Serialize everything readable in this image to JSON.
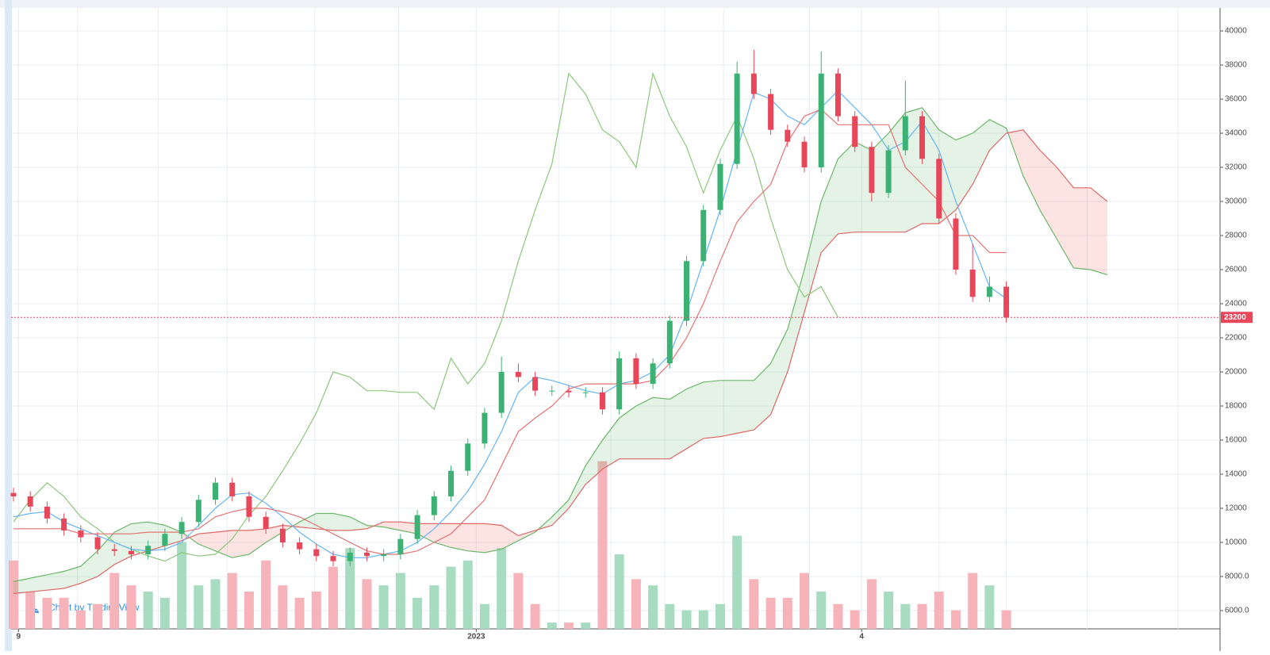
{
  "chart_data": {
    "type": "candlestick",
    "watermark": "Chart by TradingView",
    "ylim": [
      4930,
      41350
    ],
    "yticks": [
      {
        "value": 6000,
        "label": "6000.0"
      },
      {
        "value": 8000,
        "label": "8000.0"
      },
      10000,
      12000,
      14000,
      16000,
      18000,
      20000,
      22000,
      24000,
      26000,
      28000,
      30000,
      32000,
      34000,
      36000,
      38000,
      40000
    ],
    "xlim": [
      -0.14,
      71.7
    ],
    "xticks": [
      {
        "value": 0.3,
        "label": "9"
      },
      {
        "value": 27.5,
        "label": "2023"
      },
      {
        "value": 50.4,
        "label": "4"
      }
    ],
    "xgrid": [
      3.8,
      8.6,
      12.7,
      17.9,
      22.9,
      32.4,
      35.5,
      38.7,
      42.2,
      47.3,
      55,
      59,
      63.8,
      69.2
    ],
    "grid": true,
    "last_price": 23200,
    "up_color": "#3bb273",
    "down_color": "#e8475a",
    "volume_up_color": "#a8dcc0",
    "volume_down_color": "#f6b3ba",
    "displacement": 10,
    "y2lim": [
      0,
      100
    ],
    "open": [
      12900,
      12700,
      12100,
      11400,
      10700,
      10300,
      9600,
      9500,
      9300,
      9800,
      10500,
      11200,
      12500,
      13500,
      12700,
      11500,
      10800,
      10000,
      9600,
      9200,
      8900,
      9400,
      9200,
      9300,
      10200,
      11600,
      12700,
      14200,
      15800,
      17600,
      20000,
      19700,
      18900,
      18900,
      18800,
      18800,
      17800,
      20800,
      19300,
      20500,
      23000,
      26500,
      29500,
      32200,
      37500,
      36300,
      34200,
      33500,
      32000,
      37500,
      35000,
      33200,
      30500,
      33000,
      35000,
      32500,
      29000,
      26000,
      24400,
      25000
    ],
    "high": [
      13200,
      13000,
      12400,
      11700,
      11000,
      10600,
      9900,
      9800,
      10100,
      10800,
      11500,
      12800,
      13800,
      13800,
      13000,
      11800,
      11100,
      10300,
      9900,
      9500,
      9700,
      9700,
      9600,
      10500,
      11900,
      13000,
      14500,
      16100,
      17900,
      20900,
      20500,
      20000,
      19200,
      19200,
      19100,
      19100,
      21200,
      21100,
      20800,
      23300,
      26800,
      29800,
      32500,
      38200,
      38900,
      36600,
      34500,
      33800,
      38800,
      37800,
      35300,
      33500,
      33300,
      37100,
      35300,
      32800,
      29300,
      27500,
      25600,
      25300
    ],
    "low": [
      12400,
      11800,
      11100,
      10400,
      10000,
      9300,
      9200,
      9000,
      9000,
      9500,
      10200,
      10900,
      12200,
      12400,
      11200,
      10500,
      9700,
      9300,
      8900,
      8600,
      8600,
      8900,
      8900,
      9000,
      9900,
      11300,
      12400,
      13900,
      15500,
      17300,
      19400,
      18600,
      18600,
      18500,
      18500,
      17500,
      17500,
      19000,
      19000,
      20200,
      22700,
      26200,
      29200,
      31900,
      36000,
      33900,
      33200,
      31700,
      31700,
      34700,
      32900,
      30000,
      30200,
      32700,
      32200,
      28700,
      25700,
      24100,
      24100,
      22900
    ],
    "close": [
      12700,
      12100,
      11400,
      10700,
      10300,
      9600,
      9500,
      9300,
      9800,
      10500,
      11200,
      12500,
      13500,
      12700,
      11500,
      10800,
      10000,
      9600,
      9200,
      8900,
      9400,
      9200,
      9300,
      10200,
      11600,
      12700,
      14200,
      15800,
      17600,
      20000,
      19700,
      18900,
      18900,
      18800,
      18800,
      17800,
      20800,
      19300,
      20500,
      23000,
      26500,
      29500,
      32200,
      37500,
      36300,
      34200,
      33500,
      32000,
      37500,
      35000,
      33200,
      30500,
      33000,
      35000,
      32500,
      29000,
      26000,
      24400,
      25000,
      23200
    ],
    "volume": [
      11,
      6,
      5,
      5,
      3,
      4,
      9,
      7,
      6,
      5,
      14,
      7,
      8,
      9,
      6,
      11,
      7,
      5,
      6,
      10,
      13,
      8,
      7,
      9,
      5,
      7,
      10,
      11,
      4,
      13,
      9,
      4,
      1,
      1,
      1,
      27,
      12,
      8,
      7,
      4,
      3,
      3,
      4,
      15,
      8,
      5,
      5,
      9,
      6,
      4,
      3,
      8,
      6,
      4,
      4,
      6,
      3,
      9,
      7,
      3
    ],
    "lines": [
      {
        "color": "#64b5f6",
        "values": [
          11500,
          11700,
          11800,
          11200,
          10800,
          10400,
          10000,
          9600,
          9500,
          9600,
          10000,
          11000,
          12000,
          12800,
          12900,
          12300,
          11500,
          10600,
          9900,
          9300,
          9100,
          9100,
          9300,
          9500,
          10000,
          10800,
          11800,
          13000,
          14600,
          16500,
          18800,
          19700,
          19500,
          19200,
          18900,
          18700,
          19300,
          19500,
          20000,
          21000,
          23500,
          26500,
          29500,
          33000,
          36400,
          36000,
          35000,
          34500,
          35500,
          36500,
          35500,
          34500,
          33000,
          33500,
          34700,
          33000,
          30000,
          27500,
          25000,
          24300
        ]
      },
      {
        "color": "#e57373",
        "values": [
          10800,
          10800,
          10800,
          10800,
          10500,
          10500,
          10500,
          10500,
          10600,
          10600,
          10600,
          10800,
          11500,
          11800,
          12000,
          12000,
          11800,
          11500,
          11000,
          10500,
          10000,
          9500,
          9300,
          9300,
          9500,
          10000,
          10500,
          11500,
          12500,
          14500,
          16500,
          17300,
          18000,
          19000,
          19300,
          19300,
          19300,
          19300,
          19500,
          20500,
          22000,
          24000,
          26500,
          28800,
          30000,
          31000,
          33500,
          35000,
          35400,
          34500,
          34500,
          34500,
          34500,
          32000,
          31000,
          30000,
          28000,
          28000,
          27000,
          27000
        ]
      }
    ],
    "chikou_color": "#8cc77a",
    "span_a": {
      "color": "#6cb86a",
      "up_fill": "rgba(76,175,80,0.15)",
      "values": [
        7700,
        7900,
        8100,
        8300,
        8600,
        9500,
        10600,
        11100,
        11200,
        11000,
        10600,
        9900,
        9500,
        9100,
        9300,
        10000,
        10600,
        11200,
        11700,
        11700,
        11500,
        11000,
        10900,
        10700,
        10500,
        10000,
        9700,
        9500,
        9400,
        9600,
        10100,
        10600,
        11500,
        12500,
        14500,
        16000,
        17300,
        18000,
        18500,
        18400,
        19000,
        19400,
        19500,
        19500,
        19500,
        20500,
        22500,
        26000,
        30000,
        32500,
        33500,
        33000,
        34000,
        35200,
        35500,
        34200,
        33600,
        34000,
        34800,
        34300,
        31500,
        29500,
        27800,
        26100,
        26000,
        25700
      ]
    },
    "span_b": {
      "color": "#e06666",
      "down_fill": "rgba(244,67,54,0.14)",
      "values": [
        7000,
        7100,
        7200,
        7300,
        7600,
        8000,
        8700,
        9200,
        9500,
        9800,
        10100,
        10500,
        10600,
        10700,
        10700,
        10800,
        11000,
        10900,
        10800,
        10700,
        10700,
        10800,
        11200,
        11200,
        11100,
        11100,
        11100,
        11100,
        11100,
        11000,
        10400,
        10700,
        11000,
        12000,
        13400,
        14300,
        14900,
        14900,
        14900,
        14900,
        15500,
        16100,
        16200,
        16400,
        16600,
        17500,
        20000,
        23500,
        27000,
        28100,
        28200,
        28200,
        28200,
        28200,
        28700,
        28700,
        29500,
        31000,
        33000,
        34000,
        34200,
        33000,
        32000,
        30800,
        30800,
        30000
      ]
    }
  }
}
